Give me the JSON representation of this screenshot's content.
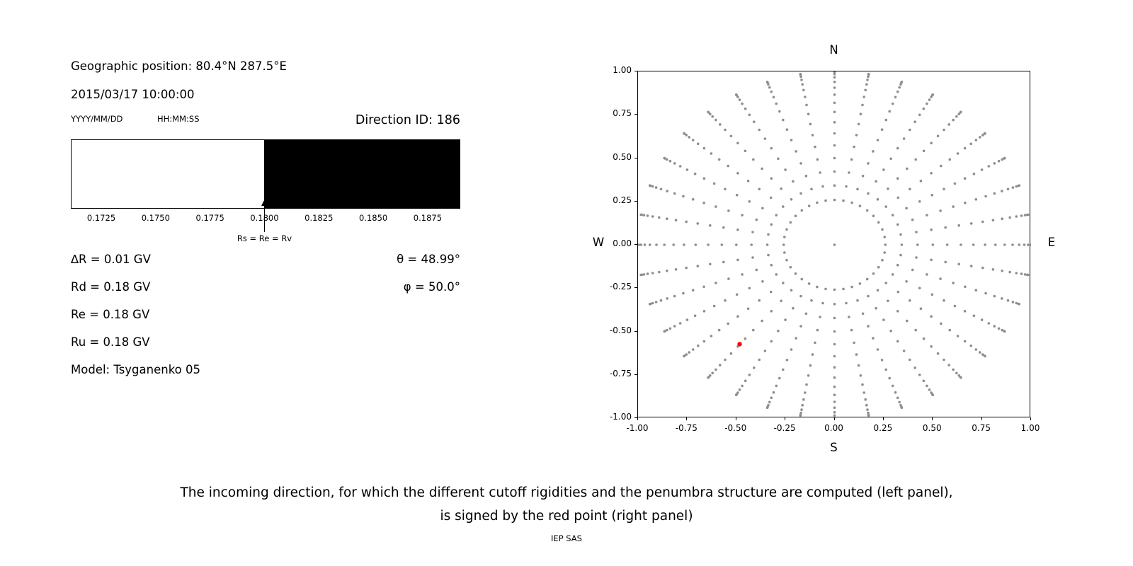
{
  "header": {
    "geographic_position": "Geographic position: 80.4°N 287.5°E",
    "datetime": "2015/03/17 10:00:00",
    "date_format_label": "YYYY/MM/DD",
    "time_format_label": "HH:MM:SS",
    "direction_id": "Direction ID: 186"
  },
  "left_panel": {
    "rigidity_lines": [
      "∆R = 0.01 GV",
      "Rd = 0.18 GV",
      "Re = 0.18 GV",
      "Ru = 0.18 GV",
      "Model: Tsyganenko 05"
    ],
    "angle_lines": [
      "θ = 48.99°",
      "φ = 50.0°"
    ]
  },
  "caption": {
    "line1": "The incoming direction, for which the different cutoff rigidities and the penumbra structure are computed (left panel),",
    "line2": "is signed by the red point (right panel)"
  },
  "footer": "IEP SAS",
  "chart_data": [
    {
      "type": "bar",
      "title": "",
      "xlabel": "",
      "xlim": [
        0.1711,
        0.189
      ],
      "xticks": [
        "0.1725",
        "0.1750",
        "0.1775",
        "0.1800",
        "0.1825",
        "0.1850",
        "0.1875"
      ],
      "segments": [
        {
          "start": 0.1711,
          "end": 0.18,
          "color": "#ffffff"
        },
        {
          "start": 0.18,
          "end": 0.189,
          "color": "#000000"
        }
      ],
      "annotation": {
        "x": 0.18,
        "label": "Rs = Re = Rv",
        "arrow": "up"
      }
    },
    {
      "type": "scatter",
      "title": "",
      "xlim": [
        -1.0,
        1.0
      ],
      "ylim": [
        -1.0,
        1.0
      ],
      "xticks": [
        "-1.00",
        "-0.75",
        "-0.50",
        "-0.25",
        "0.00",
        "0.25",
        "0.50",
        "0.75",
        "1.00"
      ],
      "yticks": [
        "1.00",
        "0.75",
        "0.50",
        "0.25",
        "0.00",
        "-0.25",
        "-0.50",
        "-0.75",
        "-1.00"
      ],
      "compass": {
        "top": "N",
        "bottom": "S",
        "left": "W",
        "right": "E"
      },
      "grid_points": {
        "azimuth_step_deg": 10,
        "zenith_start_deg": 15,
        "zenith_end_deg": 90,
        "zenith_step_deg": 5,
        "radius": "sin(zenith)",
        "include_center": true
      },
      "dot_color": "#8e8e8e",
      "highlight_point": {
        "x": -0.483,
        "y": -0.573,
        "color": "#ff0000"
      }
    }
  ]
}
